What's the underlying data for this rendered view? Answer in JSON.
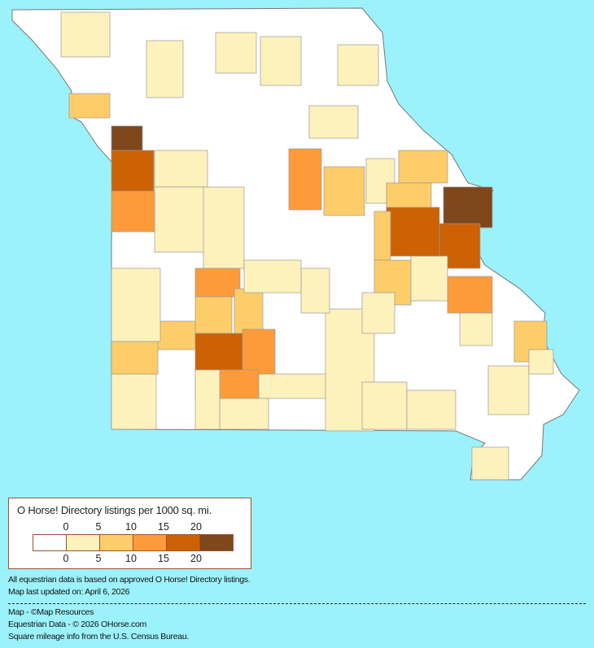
{
  "legend": {
    "title": "O Horse! Directory listings per 1000 sq. mi.",
    "ticks": [
      "0",
      "5",
      "10",
      "15",
      "20"
    ],
    "colors": [
      "#ffffff",
      "#fdf2bc",
      "#fdcd6a",
      "#fd9b3a",
      "#cc6204",
      "#7e471c"
    ]
  },
  "notes": {
    "line1": "All equestrian data is based on approved O Horse! Directory listings.",
    "line2": "Map last updated on: April 6, 2026",
    "credit1": "Map - ©Map Resources",
    "credit2": "Equestrian Data - © 2026 OHorse.com",
    "credit3": "Square mileage info from the U.S. Census Bureau."
  },
  "colors": {
    "background": "#9cf2fb",
    "border": "#a0522d",
    "county_border": "#888888"
  }
}
